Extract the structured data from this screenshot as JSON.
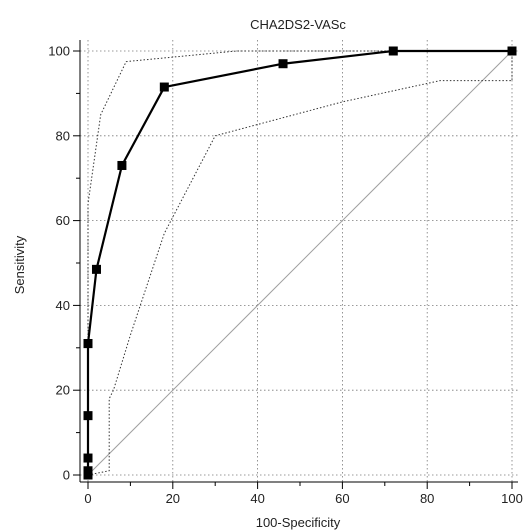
{
  "chart_data": {
    "type": "line",
    "title": "CHA2DS2-VASc",
    "xlabel": "100-Specificity",
    "ylabel": "Sensitivity",
    "xlim": [
      0,
      100
    ],
    "ylim": [
      0,
      100
    ],
    "x_ticks": [
      0,
      20,
      40,
      60,
      80,
      100
    ],
    "y_ticks": [
      0,
      20,
      40,
      60,
      80,
      100
    ],
    "grid": true,
    "colors": {
      "roc": "#000000",
      "ci": "#333333",
      "diagonal": "#a0a0a0",
      "grid": "#7a7a7a"
    },
    "series": [
      {
        "role": "roc",
        "x": [
          0,
          0,
          0,
          0,
          0,
          0,
          2,
          8,
          18,
          46,
          72,
          100
        ],
        "y": [
          0,
          1,
          4,
          14,
          31,
          31,
          48.5,
          73,
          91.5,
          97,
          100,
          100
        ]
      },
      {
        "role": "ci-upper",
        "x": [
          0,
          0,
          3,
          9,
          35,
          72,
          100
        ],
        "y": [
          0,
          64,
          85,
          97.5,
          100,
          100,
          100
        ]
      },
      {
        "role": "ci-lower",
        "x": [
          0,
          5,
          5,
          6,
          10,
          18,
          30,
          60,
          83,
          100,
          100
        ],
        "y": [
          0,
          1,
          18,
          20,
          33,
          57,
          80,
          88,
          93,
          93,
          100
        ]
      },
      {
        "role": "diagonal",
        "x": [
          0,
          100
        ],
        "y": [
          0,
          100
        ]
      }
    ]
  }
}
